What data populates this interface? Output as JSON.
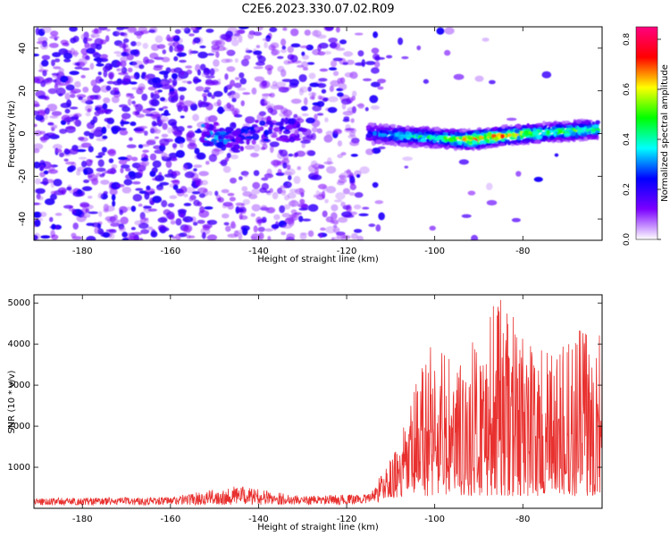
{
  "title": "C2E6.2023.330.07.02.R09",
  "chart_data": [
    {
      "type": "heatmap",
      "title": "C2E6.2023.330.07.02.R09",
      "xlabel": "Height of straight line (km)",
      "ylabel": "Frequency (Hz)",
      "xlim": [
        -191,
        -62
      ],
      "ylim": [
        -50,
        50
      ],
      "x_ticks": [
        -180,
        -160,
        -140,
        -120,
        -100,
        -80
      ],
      "y_ticks": [
        -40,
        -20,
        0,
        20,
        40
      ],
      "colorbar": {
        "label": "Normalized spectral amplitude",
        "range": [
          0,
          0.85
        ],
        "ticks": [
          0.0,
          0.2,
          0.4,
          0.6,
          0.8
        ],
        "colormap": [
          "#ffffff",
          "#7b00ff",
          "#0000ff",
          "#00ffff",
          "#00ff00",
          "#ffff00",
          "#ff0000",
          "#ff0080"
        ]
      },
      "signal_band": {
        "x_range": [
          -115,
          -63
        ],
        "center_start_hz": 0,
        "center_end_hz": 2,
        "peak_amplitude": 0.85,
        "description_points": [
          {
            "x": -150,
            "freq": 0,
            "amp": 0.35
          },
          {
            "x": -145,
            "freq": -4,
            "amp": 0.3
          },
          {
            "x": -140,
            "freq": 2,
            "amp": 0.25
          },
          {
            "x": -115,
            "freq": 0,
            "amp": 0.25
          },
          {
            "x": -108,
            "freq": -1,
            "amp": 0.45
          },
          {
            "x": -100,
            "freq": -2,
            "amp": 0.5
          },
          {
            "x": -92,
            "freq": -3,
            "amp": 0.85
          },
          {
            "x": -88,
            "freq": -2,
            "amp": 0.8
          },
          {
            "x": -84,
            "freq": -1,
            "amp": 0.75
          },
          {
            "x": -78,
            "freq": 0,
            "amp": 0.6
          },
          {
            "x": -70,
            "freq": 1,
            "amp": 0.55
          },
          {
            "x": -64,
            "freq": 2,
            "amp": 0.5
          }
        ]
      }
    },
    {
      "type": "line",
      "xlabel": "Height of straight line (km)",
      "ylabel": "SNR (10 * v/v)",
      "xlim": [
        -191,
        -62
      ],
      "ylim": [
        0,
        5200
      ],
      "x_ticks": [
        -180,
        -160,
        -140,
        -120,
        -100,
        -80
      ],
      "y_ticks": [
        1000,
        2000,
        3000,
        4000,
        5000
      ],
      "line_color": "#e8312f",
      "envelope": [
        {
          "x": -191,
          "y": 250
        },
        {
          "x": -160,
          "y": 280
        },
        {
          "x": -145,
          "y": 550
        },
        {
          "x": -130,
          "y": 300
        },
        {
          "x": -115,
          "y": 350
        },
        {
          "x": -108,
          "y": 1600
        },
        {
          "x": -101,
          "y": 4450
        },
        {
          "x": -95,
          "y": 3500
        },
        {
          "x": -90,
          "y": 4300
        },
        {
          "x": -86,
          "y": 5200
        },
        {
          "x": -80,
          "y": 4400
        },
        {
          "x": -75,
          "y": 3800
        },
        {
          "x": -70,
          "y": 4000
        },
        {
          "x": -65,
          "y": 4850
        },
        {
          "x": -63,
          "y": 5100
        }
      ],
      "noise_floor": [
        {
          "x": -191,
          "y": 120
        },
        {
          "x": -120,
          "y": 150
        },
        {
          "x": -110,
          "y": 250
        },
        {
          "x": -100,
          "y": 300
        },
        {
          "x": -62,
          "y": 300
        }
      ]
    }
  ]
}
